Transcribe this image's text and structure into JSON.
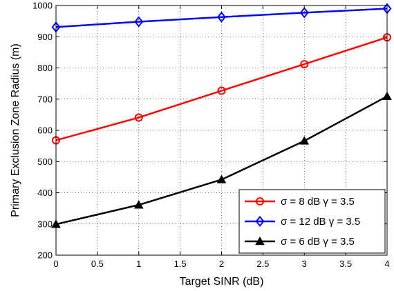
{
  "chart_data": {
    "type": "line",
    "title": "",
    "xlabel": "Target SINR (dB)",
    "ylabel": "Primary Exclusion Zone Radius (m)",
    "xlim": [
      0,
      4
    ],
    "ylim": [
      200,
      1000
    ],
    "xticks": [
      0,
      0.5,
      1,
      1.5,
      2,
      2.5,
      3,
      3.5,
      4
    ],
    "xtick_labels": [
      "0",
      "0.5",
      "1",
      "1.5",
      "2",
      "2.5",
      "3",
      "3.5",
      "4"
    ],
    "yticks": [
      200,
      300,
      400,
      500,
      600,
      700,
      800,
      900,
      1000
    ],
    "ytick_labels": [
      "200",
      "300",
      "400",
      "500",
      "600",
      "700",
      "800",
      "900",
      "1000"
    ],
    "grid": true,
    "legend_position": "bottom-right",
    "x": [
      0,
      1,
      2,
      3,
      4
    ],
    "series": [
      {
        "name": "σ = 8 dB γ = 3.5",
        "color": "#ff0000",
        "marker": "circle",
        "values": [
          568,
          641,
          727,
          812,
          898
        ]
      },
      {
        "name": "σ = 12 dB γ = 3.5",
        "color": "#0000ff",
        "marker": "diamond",
        "values": [
          931,
          948,
          963,
          977,
          990
        ]
      },
      {
        "name": "σ = 6 dB γ = 3.5",
        "color": "#000000",
        "marker": "triangle",
        "values": [
          299,
          361,
          442,
          566,
          709
        ]
      }
    ]
  }
}
